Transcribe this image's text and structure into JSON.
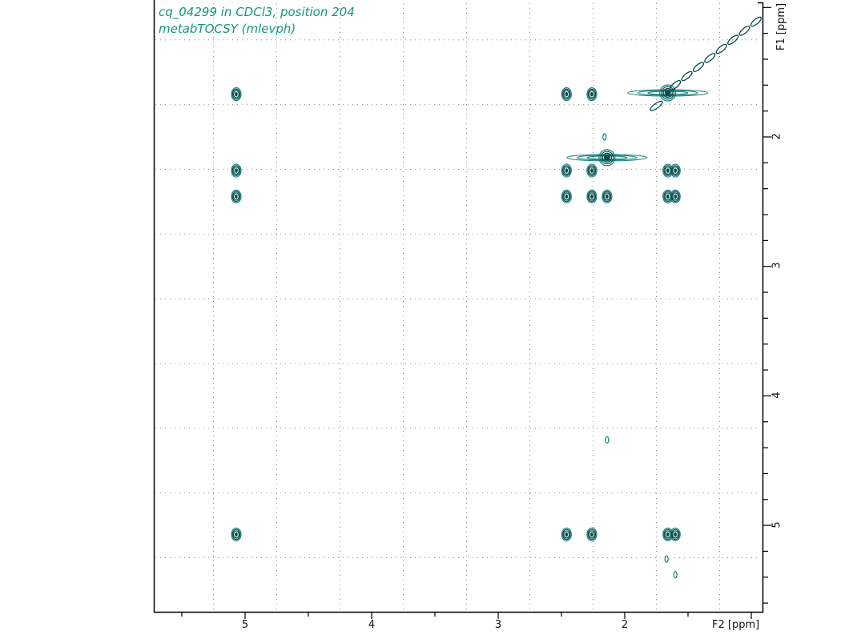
{
  "header": {
    "title_line1": "cq_04299 in CDCl3, position 204",
    "title_line2": "metabTOCSY (mlevph)"
  },
  "axes": {
    "x_label": "F2 [ppm]",
    "y_label": "F1 [ppm]",
    "x_ticks": [
      "5",
      "4",
      "3",
      "2"
    ],
    "y_ticks": [
      "2",
      "3",
      "4",
      "5"
    ]
  },
  "colors": {
    "contour_dark": "#0a4a4a",
    "contour_light": "#12807a",
    "title": "#12967e",
    "grid": "#888888",
    "axis": "#000000"
  },
  "chart_data": {
    "type": "contour",
    "title": "cq_04299 in CDCl3, position 204 — metabTOCSY (mlevph)",
    "xlabel": "F2 [ppm]",
    "ylabel": "F1 [ppm]",
    "xlim": [
      5.6,
      0.8
    ],
    "ylim": [
      0.97,
      5.68
    ],
    "x_ticks": [
      5,
      4,
      3,
      2
    ],
    "y_ticks": [
      2,
      3,
      4,
      5
    ],
    "grid": true,
    "diagonal": {
      "from": [
        1.6,
        1.6
      ],
      "to": [
        0.95,
        1.1
      ]
    },
    "peaks": [
      {
        "f2": 5.07,
        "f1": 1.67,
        "kind": "cross"
      },
      {
        "f2": 5.07,
        "f1": 2.26,
        "kind": "cross"
      },
      {
        "f2": 5.07,
        "f1": 2.46,
        "kind": "cross"
      },
      {
        "f2": 5.07,
        "f1": 5.07,
        "kind": "diagonal"
      },
      {
        "f2": 2.46,
        "f1": 1.67,
        "kind": "cross"
      },
      {
        "f2": 2.26,
        "f1": 1.67,
        "kind": "cross"
      },
      {
        "f2": 1.66,
        "f1": 1.66,
        "kind": "diagonal",
        "note": "strong, t1 streak"
      },
      {
        "f2": 2.46,
        "f1": 2.26,
        "kind": "cross"
      },
      {
        "f2": 2.26,
        "f1": 2.26,
        "kind": "cross"
      },
      {
        "f2": 2.14,
        "f1": 2.16,
        "kind": "diagonal",
        "note": "strong, t1 streak"
      },
      {
        "f2": 2.16,
        "f1": 2.0,
        "kind": "weak"
      },
      {
        "f2": 1.66,
        "f1": 2.26,
        "kind": "cross"
      },
      {
        "f2": 1.6,
        "f1": 2.26,
        "kind": "cross"
      },
      {
        "f2": 2.46,
        "f1": 2.46,
        "kind": "diagonal"
      },
      {
        "f2": 2.26,
        "f1": 2.46,
        "kind": "cross"
      },
      {
        "f2": 2.14,
        "f1": 2.46,
        "kind": "cross"
      },
      {
        "f2": 1.66,
        "f1": 2.46,
        "kind": "cross"
      },
      {
        "f2": 1.6,
        "f1": 2.46,
        "kind": "cross"
      },
      {
        "f2": 2.14,
        "f1": 4.34,
        "kind": "weak"
      },
      {
        "f2": 2.46,
        "f1": 5.07,
        "kind": "cross"
      },
      {
        "f2": 2.26,
        "f1": 5.07,
        "kind": "cross"
      },
      {
        "f2": 1.66,
        "f1": 5.07,
        "kind": "cross"
      },
      {
        "f2": 1.6,
        "f1": 5.07,
        "kind": "cross"
      },
      {
        "f2": 1.67,
        "f1": 5.26,
        "kind": "weak"
      },
      {
        "f2": 1.6,
        "f1": 5.38,
        "kind": "weak"
      }
    ]
  }
}
